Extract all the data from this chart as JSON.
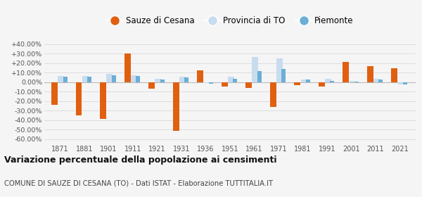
{
  "years_labels": [
    "1871",
    "1881",
    "1901",
    "1911",
    "1921",
    "1931",
    "1936",
    "1951",
    "1961",
    "1971",
    "1981",
    "1991",
    "2001",
    "2011",
    "2021"
  ],
  "sauze": [
    -24.0,
    -35.0,
    -39.0,
    30.0,
    -7.0,
    -51.0,
    12.5,
    -4.5,
    -6.5,
    -26.5,
    -3.5,
    -4.5,
    21.0,
    17.0,
    14.5
  ],
  "provincia": [
    6.5,
    6.5,
    8.5,
    7.0,
    3.5,
    5.5,
    -1.0,
    5.5,
    26.5,
    25.0,
    3.0,
    3.5,
    1.0,
    3.5,
    -2.5
  ],
  "piemonte": [
    6.0,
    6.0,
    7.5,
    6.5,
    3.0,
    5.0,
    -1.5,
    3.5,
    11.5,
    13.5,
    2.5,
    1.5,
    0.5,
    3.0,
    -2.5
  ],
  "color_sauze": "#E06010",
  "color_provincia": "#C8DCF0",
  "color_piemonte": "#6BAED6",
  "yticks": [
    -60,
    -50,
    -40,
    -30,
    -20,
    -10,
    0,
    10,
    20,
    30,
    40
  ],
  "ytick_labels": [
    "-60.00%",
    "-50.00%",
    "-40.00%",
    "-30.00%",
    "-20.00%",
    "-10.00%",
    "0.00%",
    "+10.00%",
    "+20.00%",
    "+30.00%",
    "+40.00%"
  ],
  "ylim": [
    -65,
    45
  ],
  "title": "Variazione percentuale della popolazione ai censimenti",
  "subtitle": "COMUNE DI SAUZE DI CESANA (TO) - Dati ISTAT - Elaborazione TUTTITALIA.IT",
  "legend_labels": [
    "Sauze di Cesana",
    "Provincia di TO",
    "Piemonte"
  ],
  "bar_width": 0.25,
  "bg_color": "#F5F5F5",
  "grid_color": "#DDDDDD"
}
